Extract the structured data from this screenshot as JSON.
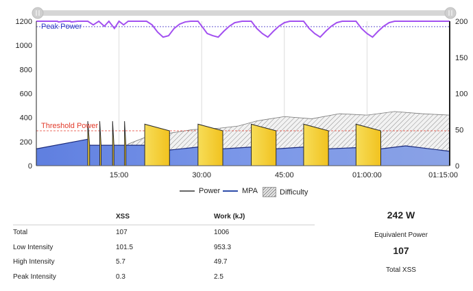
{
  "chart_data": {
    "type": "area",
    "x_ticks": [
      "15:00",
      "30:00",
      "45:00",
      "01:00:00",
      "01:15:00"
    ],
    "x_range": [
      0,
      4500
    ],
    "x_tick_values": [
      900,
      1800,
      2700,
      3600,
      4500
    ],
    "y_left": {
      "ticks": [
        0,
        200,
        400,
        600,
        800,
        1000,
        1200
      ],
      "range": [
        0,
        1200
      ]
    },
    "y_right": {
      "ticks": [
        0,
        50,
        100,
        150,
        200
      ],
      "range": [
        0,
        200
      ]
    },
    "annotations": {
      "peak_power": "Peak Power",
      "threshold_power": "Threshold Power"
    },
    "peak_power_value": 1155,
    "threshold_power_value": 290,
    "intervals": [
      {
        "start": 560,
        "end": 580,
        "top": 370,
        "base": 170
      },
      {
        "start": 690,
        "end": 705,
        "top": 370,
        "base": 170
      },
      {
        "start": 830,
        "end": 845,
        "top": 370,
        "base": 170
      },
      {
        "start": 960,
        "end": 975,
        "top": 370,
        "base": 170
      },
      {
        "start": 1180,
        "end": 1450,
        "top": 345,
        "base": 290
      },
      {
        "start": 1760,
        "end": 2030,
        "top": 345,
        "base": 290
      },
      {
        "start": 2340,
        "end": 2610,
        "top": 345,
        "base": 290
      },
      {
        "start": 2910,
        "end": 3180,
        "top": 345,
        "base": 290
      },
      {
        "start": 3480,
        "end": 3750,
        "top": 345,
        "base": 290
      }
    ],
    "series": [
      {
        "name": "Power",
        "x": [
          0,
          560,
          580,
          990,
          1180,
          1450,
          1760,
          2030,
          2340,
          2610,
          2910,
          3180,
          3480,
          3750,
          4020,
          4500
        ],
        "y": [
          140,
          220,
          170,
          170,
          170,
          130,
          155,
          140,
          155,
          140,
          155,
          140,
          150,
          140,
          165,
          120
        ]
      },
      {
        "name": "MPA",
        "x": [
          0,
          80,
          160,
          170,
          230,
          240,
          300,
          310,
          370,
          380,
          450,
          560,
          620,
          680,
          740,
          790,
          850,
          900,
          950,
          1000,
          1100,
          1200,
          1260,
          1320,
          1380,
          1440,
          1500,
          1560,
          1620,
          1680,
          1760,
          1820,
          1860,
          1920,
          1980,
          2040,
          2100,
          2160,
          2240,
          2340,
          2400,
          2460,
          2520,
          2580,
          2640,
          2700,
          2760,
          2820,
          2910,
          2970,
          3030,
          3090,
          3150,
          3210,
          3270,
          3330,
          3400,
          3480,
          3540,
          3600,
          3660,
          3720,
          3780,
          3840,
          3900,
          3980,
          4060,
          4500
        ],
        "y": [
          200,
          200,
          200,
          200,
          200,
          199,
          200,
          200,
          200,
          199,
          200,
          200,
          195,
          200,
          193,
          200,
          190,
          200,
          195,
          200,
          200,
          200,
          195,
          185,
          178,
          180,
          190,
          196,
          199,
          200,
          200,
          190,
          183,
          180,
          178,
          186,
          193,
          198,
          200,
          200,
          190,
          183,
          178,
          186,
          193,
          198,
          200,
          200,
          200,
          190,
          183,
          178,
          186,
          193,
          198,
          200,
          200,
          200,
          190,
          183,
          178,
          186,
          193,
          198,
          200,
          200,
          200,
          200
        ]
      },
      {
        "name": "Difficulty",
        "x": [
          0,
          900,
          1000,
          1200,
          1700,
          2000,
          2200,
          2400,
          2700,
          3000,
          3300,
          3600,
          3900,
          4200,
          4500
        ],
        "y": [
          0,
          0,
          30,
          40,
          50,
          52,
          55,
          62,
          68,
          65,
          72,
          70,
          75,
          72,
          70
        ]
      }
    ]
  },
  "legend": {
    "power": "Power",
    "mpa": "MPA",
    "difficulty": "Difficulty"
  },
  "table": {
    "headers": [
      "",
      "XSS",
      "Work (kJ)"
    ],
    "rows": [
      {
        "label": "Total",
        "xss": "107",
        "work": "1006"
      },
      {
        "label": "Low Intensity",
        "xss": "101.5",
        "work": "953.3"
      },
      {
        "label": "High Intensity",
        "xss": "5.7",
        "work": "49.7"
      },
      {
        "label": "Peak Intensity",
        "xss": "0.3",
        "work": "2.5"
      }
    ]
  },
  "summary": {
    "equivalent_power_value": "242 W",
    "equivalent_power_label": "Equivalent Power",
    "total_xss_value": "107",
    "total_xss_label": "Total XSS"
  },
  "colors": {
    "mpa_line": "#a24ff0",
    "power_fill": "#6f8ee6",
    "interval_yellow": "#f4ce2c",
    "threshold": "#e23a2a",
    "peak_text": "#2a36c4",
    "scrollbar": "#d6d6d6"
  }
}
